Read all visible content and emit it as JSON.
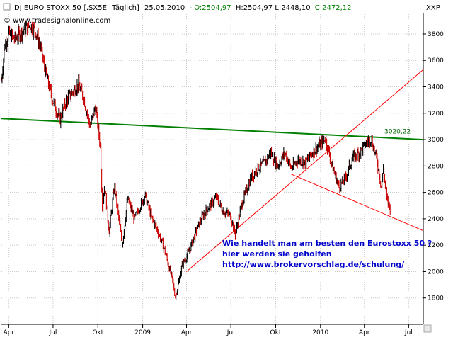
{
  "chart_data": {
    "type": "line",
    "title": {
      "instrument": "DJ EURO STOXX 50 [.SX5E",
      "interval": "Täglich]",
      "date": "25.05.2010",
      "open": "- O:2504,97",
      "high_low": "H:2504,97 L:2448,10",
      "close": "C:2472,12"
    },
    "axis_unit": "XXP",
    "source": "© www.tradesignalonline.com",
    "y_axis": {
      "ylim": [
        1600,
        3950
      ],
      "ticks": [
        1800,
        2000,
        2200,
        2400,
        2600,
        2800,
        3000,
        3200,
        3400,
        3600,
        3800
      ]
    },
    "x_axis": {
      "start": "2008-03-17",
      "end": "2010-07-31",
      "tick_labels": [
        {
          "date": "2008-04-01",
          "label": "Apr"
        },
        {
          "date": "2008-07-01",
          "label": "Jul"
        },
        {
          "date": "2008-10-01",
          "label": "Okt"
        },
        {
          "date": "2009-01-01",
          "label": "2009"
        },
        {
          "date": "2009-04-01",
          "label": "Apr"
        },
        {
          "date": "2009-07-01",
          "label": "Jul"
        },
        {
          "date": "2009-10-01",
          "label": "Okt"
        },
        {
          "date": "2010-01-01",
          "label": "2010"
        },
        {
          "date": "2010-04-01",
          "label": "Apr"
        },
        {
          "date": "2010-07-01",
          "label": "Jul"
        }
      ]
    },
    "series": [
      {
        "values": [
          [
            "2008-03-17",
            3450
          ],
          [
            "2008-03-24",
            3720
          ],
          [
            "2008-04-01",
            3800
          ],
          [
            "2008-04-14",
            3760
          ],
          [
            "2008-05-01",
            3830
          ],
          [
            "2008-05-15",
            3870
          ],
          [
            "2008-05-26",
            3820
          ],
          [
            "2008-06-05",
            3700
          ],
          [
            "2008-06-16",
            3500
          ],
          [
            "2008-06-30",
            3300
          ],
          [
            "2008-07-15",
            3150
          ],
          [
            "2008-07-28",
            3300
          ],
          [
            "2008-08-08",
            3350
          ],
          [
            "2008-08-22",
            3420
          ],
          [
            "2008-09-03",
            3300
          ],
          [
            "2008-09-15",
            3100
          ],
          [
            "2008-09-26",
            3250
          ],
          [
            "2008-10-06",
            2950
          ],
          [
            "2008-10-10",
            2500
          ],
          [
            "2008-10-15",
            2650
          ],
          [
            "2008-10-24",
            2300
          ],
          [
            "2008-11-04",
            2650
          ],
          [
            "2008-11-20",
            2200
          ],
          [
            "2008-12-01",
            2550
          ],
          [
            "2008-12-15",
            2400
          ],
          [
            "2009-01-06",
            2580
          ],
          [
            "2009-01-20",
            2400
          ],
          [
            "2009-02-02",
            2300
          ],
          [
            "2009-02-16",
            2150
          ],
          [
            "2009-03-02",
            1950
          ],
          [
            "2009-03-09",
            1810
          ],
          [
            "2009-03-16",
            1920
          ],
          [
            "2009-03-23",
            2050
          ],
          [
            "2009-04-06",
            2150
          ],
          [
            "2009-04-20",
            2300
          ],
          [
            "2009-05-04",
            2420
          ],
          [
            "2009-05-18",
            2500
          ],
          [
            "2009-06-01",
            2560
          ],
          [
            "2009-06-15",
            2460
          ],
          [
            "2009-07-01",
            2420
          ],
          [
            "2009-07-10",
            2280
          ],
          [
            "2009-07-24",
            2520
          ],
          [
            "2009-08-10",
            2700
          ],
          [
            "2009-08-24",
            2780
          ],
          [
            "2009-09-07",
            2820
          ],
          [
            "2009-09-21",
            2900
          ],
          [
            "2009-10-05",
            2800
          ],
          [
            "2009-10-20",
            2900
          ],
          [
            "2009-11-02",
            2780
          ],
          [
            "2009-11-16",
            2850
          ],
          [
            "2009-12-01",
            2820
          ],
          [
            "2009-12-15",
            2900
          ],
          [
            "2010-01-04",
            2980
          ],
          [
            "2010-01-11",
            3010
          ],
          [
            "2010-01-25",
            2800
          ],
          [
            "2010-02-08",
            2640
          ],
          [
            "2010-02-22",
            2720
          ],
          [
            "2010-03-08",
            2860
          ],
          [
            "2010-03-22",
            2900
          ],
          [
            "2010-04-06",
            2980
          ],
          [
            "2010-04-15",
            3010
          ],
          [
            "2010-04-27",
            2840
          ],
          [
            "2010-05-06",
            2640
          ],
          [
            "2010-05-10",
            2780
          ],
          [
            "2010-05-17",
            2550
          ],
          [
            "2010-05-25",
            2470
          ]
        ]
      }
    ],
    "trendlines": [
      {
        "color": "#008000",
        "points": [
          [
            "2008-03-17",
            3160
          ],
          [
            "2010-07-31",
            3000
          ]
        ],
        "label": "3020,22"
      },
      {
        "color": "#ff0000",
        "points": [
          [
            "2009-04-01",
            2000
          ],
          [
            "2010-07-31",
            3530
          ]
        ]
      },
      {
        "color": "#ff0000",
        "points": [
          [
            "2009-11-01",
            2740
          ],
          [
            "2010-07-31",
            2310
          ]
        ]
      }
    ],
    "annotation": [
      "Wie handelt man am besten  den Eurostoxx 50 ?",
      "hier werden sie geholfen",
      "http://www.brokervorschlag.de/schulung/"
    ],
    "colors": {
      "up": "#000000",
      "down": "#cc0000",
      "grid": "#c8c8c8",
      "annotation": "#0000cc"
    },
    "grid": true
  }
}
